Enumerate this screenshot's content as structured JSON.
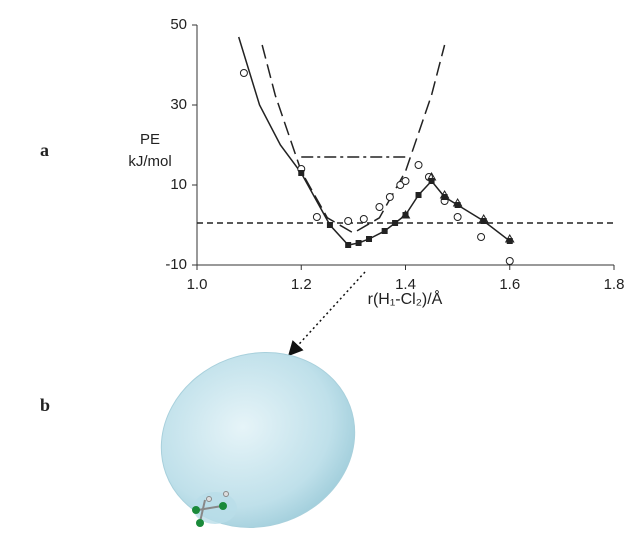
{
  "chart_data": {
    "type": "scatter",
    "panel_labels": [
      "a",
      "b"
    ],
    "y_label": [
      "PE",
      "kJ/mol"
    ],
    "x_label": "r(H₁-Cl₂)/Å",
    "xlim": [
      1.0,
      1.8
    ],
    "xticks": [
      {
        "value": 1.0,
        "label": "1.0"
      },
      {
        "value": 1.2,
        "label": "1.2"
      },
      {
        "value": 1.4,
        "label": "1.4"
      },
      {
        "value": 1.6,
        "label": "1.6"
      },
      {
        "value": 1.8,
        "label": "1.8"
      }
    ],
    "ylim": [
      -10,
      50
    ],
    "yticks": [
      -10,
      10,
      30,
      50
    ],
    "series": [
      {
        "kind": "line",
        "color": "#222222",
        "dash": "none",
        "x": [
          1.08,
          1.12,
          1.16,
          1.2,
          1.255,
          1.29,
          1.31,
          1.33,
          1.36,
          1.38,
          1.4,
          1.425,
          1.45,
          1.475,
          1.5,
          1.55,
          1.6
        ],
        "values": [
          47,
          30,
          20,
          13,
          0,
          -5,
          -4.5,
          -3.5,
          -1.5,
          0.5,
          2.5,
          7.5,
          11,
          7,
          5,
          1,
          -4
        ]
      },
      {
        "kind": "line",
        "color": "#222222",
        "dash": "14 6",
        "x": [
          1.125,
          1.15,
          1.2,
          1.25,
          1.3,
          1.35,
          1.4,
          1.45,
          1.475
        ],
        "values": [
          45,
          32.5,
          13.4,
          1.8,
          -2,
          1.8,
          13.4,
          32.5,
          45
        ]
      },
      {
        "kind": "line",
        "color": "#222222",
        "dash": "6 4",
        "x": [
          1.0,
          1.8
        ],
        "values": [
          0.5,
          0.5
        ]
      },
      {
        "kind": "line",
        "color": "#222222",
        "dash": "12 4 3 4",
        "x": [
          1.2,
          1.4
        ],
        "values": [
          17,
          17
        ]
      },
      {
        "kind": "circle",
        "color": "#222222",
        "x": [
          1.09,
          1.2,
          1.23,
          1.29,
          1.32,
          1.35,
          1.37,
          1.39,
          1.4,
          1.425,
          1.445,
          1.475,
          1.5,
          1.545,
          1.6
        ],
        "values": [
          38,
          14,
          2,
          1,
          1.5,
          4.5,
          7,
          10,
          11,
          15,
          12,
          6,
          2,
          -3,
          -9
        ]
      },
      {
        "kind": "square",
        "color": "#222222",
        "x": [
          1.2,
          1.255,
          1.29,
          1.31,
          1.33,
          1.36,
          1.38,
          1.4,
          1.425,
          1.45,
          1.475,
          1.5,
          1.55,
          1.6
        ],
        "values": [
          13,
          0,
          -5,
          -4.5,
          -3.5,
          -1.5,
          0.5,
          2.5,
          7.5,
          11,
          7,
          5,
          1,
          -4
        ]
      },
      {
        "kind": "triangle",
        "color": "#222222",
        "x": [
          1.4,
          1.45,
          1.475,
          1.5,
          1.55,
          1.6
        ],
        "values": [
          2.5,
          12,
          7.5,
          5.5,
          1.5,
          -3.5
        ]
      }
    ]
  }
}
